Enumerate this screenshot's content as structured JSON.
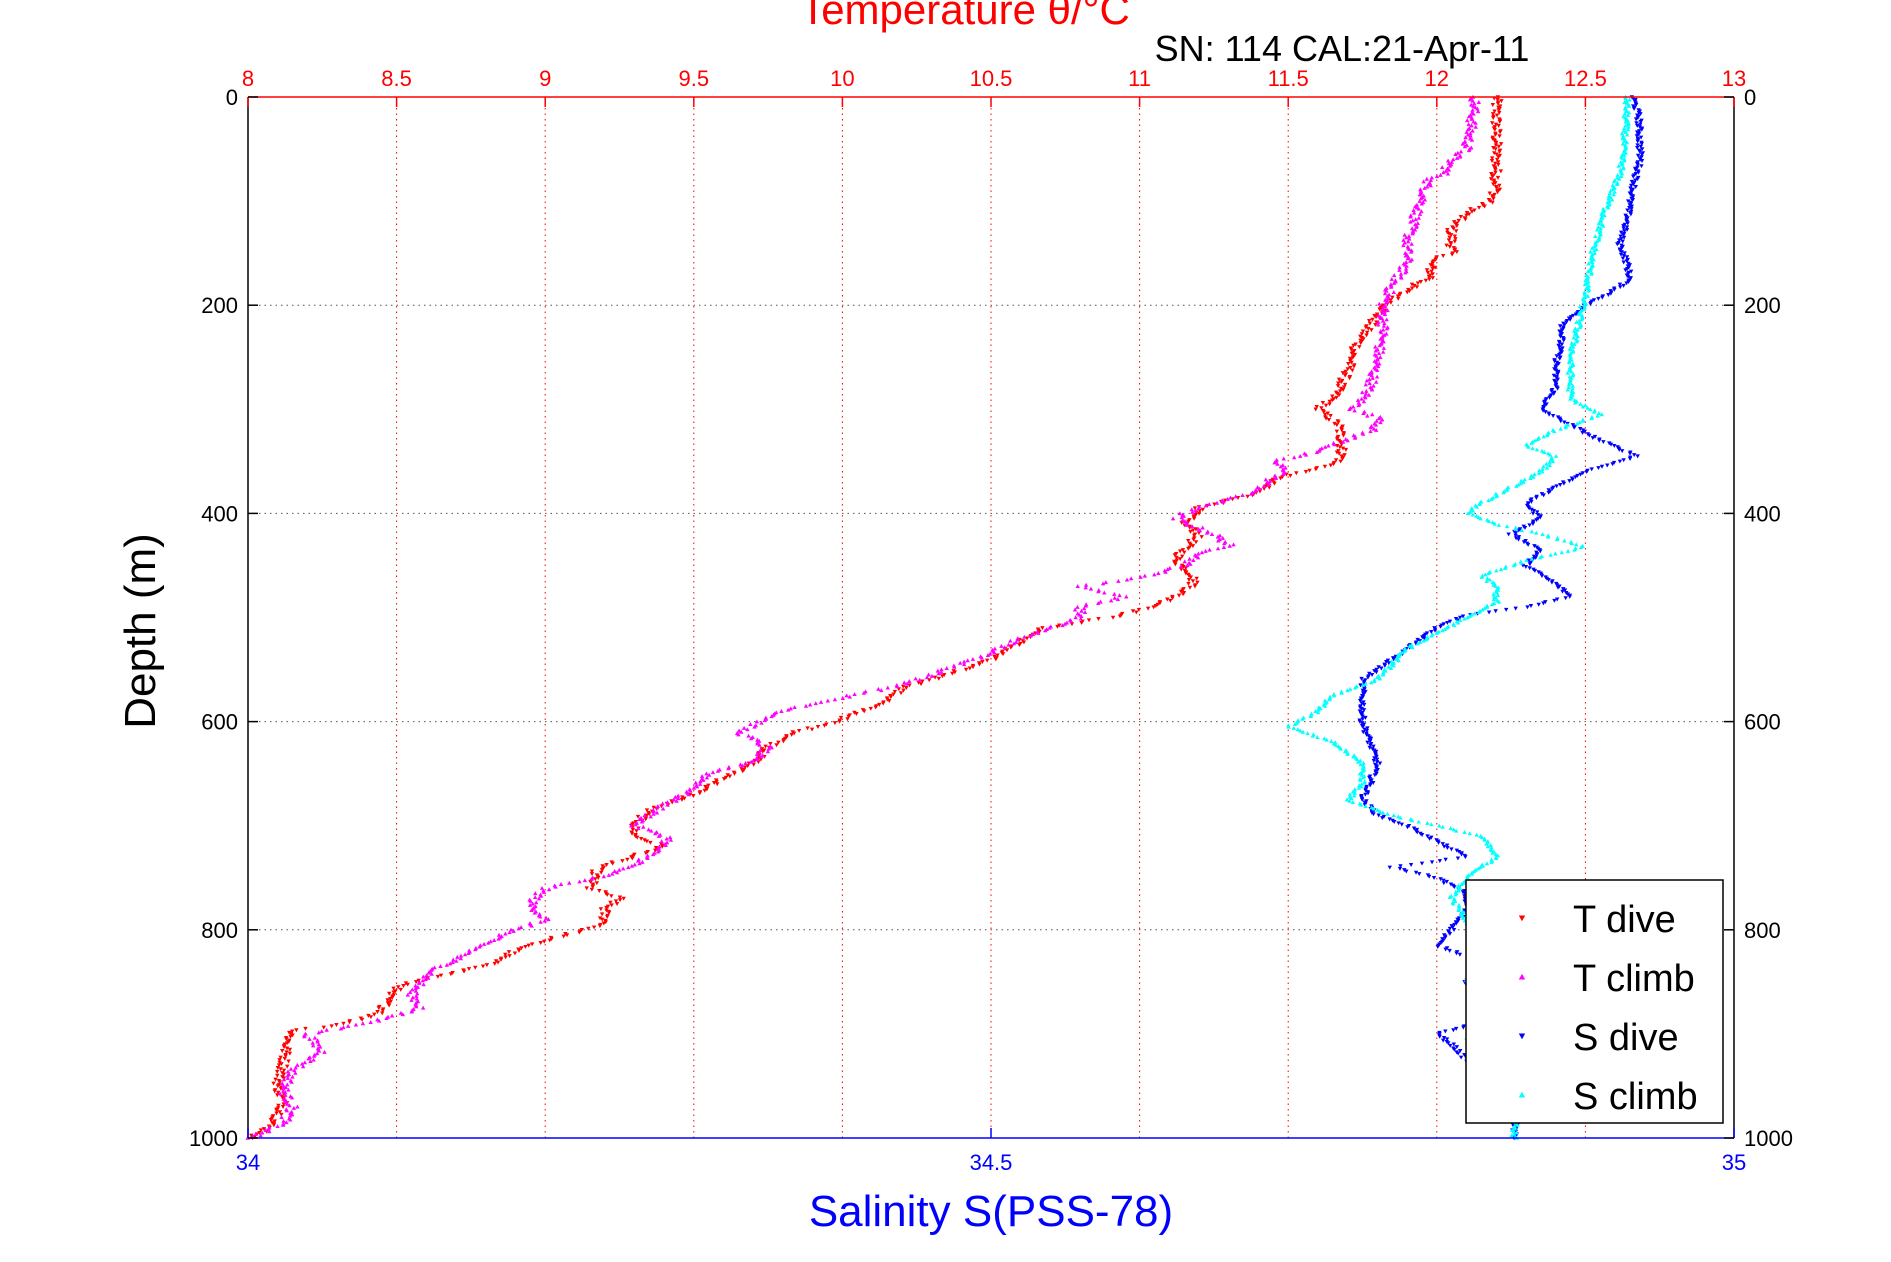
{
  "chart_data": {
    "type": "scatter",
    "title": "Temperature θ/°C",
    "subtitle": "SN: 114  CAL:21-Apr-11",
    "xlabel_top": "Temperature θ/°C",
    "xlabel_bottom": "Salinity S(PSS-78)",
    "ylabel": "Depth (m)",
    "temperature_axis": {
      "range": [
        8,
        13
      ],
      "ticks": [
        "8",
        "8.5",
        "9",
        "9.5",
        "10",
        "10.5",
        "11",
        "11.5",
        "12",
        "12.5",
        "13"
      ]
    },
    "salinity_axis": {
      "range": [
        34,
        35
      ],
      "ticks": [
        "34",
        "34.5",
        "35"
      ]
    },
    "depth_axis": {
      "range": [
        0,
        1000
      ],
      "reversed": true,
      "ticks": [
        "0",
        "200",
        "400",
        "600",
        "800",
        "1000"
      ]
    },
    "grid": "dotted",
    "legend_position": "bottom-right",
    "colors": {
      "t_dive": "#ff0000",
      "t_climb": "#ff00ff",
      "s_dive": "#0000ff",
      "s_climb": "#00ffff",
      "temp_axis": "#ff0000",
      "sal_axis": "#0000ff",
      "text": "#000000"
    },
    "series": [
      {
        "name": "T dive",
        "variable": "temperature",
        "marker": "triangle-down",
        "profile": [
          [
            0,
            12.2
          ],
          [
            30,
            12.2
          ],
          [
            90,
            12.2
          ],
          [
            100,
            12.18
          ],
          [
            112,
            12.1
          ],
          [
            125,
            12.05
          ],
          [
            150,
            12.05
          ],
          [
            158,
            11.98
          ],
          [
            175,
            11.98
          ],
          [
            180,
            11.93
          ],
          [
            195,
            11.85
          ],
          [
            210,
            11.8
          ],
          [
            225,
            11.76
          ],
          [
            245,
            11.72
          ],
          [
            265,
            11.7
          ],
          [
            290,
            11.65
          ],
          [
            300,
            11.6
          ],
          [
            315,
            11.67
          ],
          [
            330,
            11.68
          ],
          [
            348,
            11.68
          ],
          [
            355,
            11.63
          ],
          [
            365,
            11.47
          ],
          [
            375,
            11.42
          ],
          [
            382,
            11.38
          ],
          [
            395,
            11.2
          ],
          [
            410,
            11.15
          ],
          [
            420,
            11.2
          ],
          [
            435,
            11.15
          ],
          [
            445,
            11.12
          ],
          [
            460,
            11.18
          ],
          [
            470,
            11.18
          ],
          [
            480,
            11.12
          ],
          [
            490,
            11.05
          ],
          [
            500,
            10.9
          ],
          [
            510,
            10.68
          ],
          [
            540,
            10.5
          ],
          [
            560,
            10.3
          ],
          [
            568,
            10.2
          ],
          [
            580,
            10.15
          ],
          [
            600,
            9.98
          ],
          [
            610,
            9.85
          ],
          [
            625,
            9.75
          ],
          [
            640,
            9.7
          ],
          [
            655,
            9.6
          ],
          [
            670,
            9.5
          ],
          [
            685,
            9.35
          ],
          [
            700,
            9.3
          ],
          [
            710,
            9.3
          ],
          [
            720,
            9.4
          ],
          [
            740,
            9.18
          ],
          [
            760,
            9.15
          ],
          [
            770,
            9.25
          ],
          [
            780,
            9.2
          ],
          [
            795,
            9.2
          ],
          [
            810,
            9.0
          ],
          [
            820,
            8.9
          ],
          [
            835,
            8.8
          ],
          [
            850,
            8.55
          ],
          [
            860,
            8.48
          ],
          [
            880,
            8.45
          ],
          [
            892,
            8.3
          ],
          [
            897,
            8.15
          ],
          [
            910,
            8.13
          ],
          [
            930,
            8.12
          ],
          [
            950,
            8.1
          ],
          [
            968,
            8.12
          ],
          [
            980,
            8.1
          ],
          [
            995,
            8.05
          ],
          [
            1000,
            8.0
          ]
        ],
        "jitter": 0.035
      },
      {
        "name": "T climb",
        "variable": "temperature",
        "marker": "triangle-up",
        "profile": [
          [
            0,
            12.13
          ],
          [
            20,
            12.12
          ],
          [
            50,
            12.1
          ],
          [
            60,
            12.05
          ],
          [
            75,
            12.02
          ],
          [
            80,
            11.97
          ],
          [
            100,
            11.95
          ],
          [
            120,
            11.92
          ],
          [
            140,
            11.9
          ],
          [
            160,
            11.9
          ],
          [
            180,
            11.85
          ],
          [
            200,
            11.82
          ],
          [
            225,
            11.82
          ],
          [
            250,
            11.8
          ],
          [
            275,
            11.78
          ],
          [
            290,
            11.75
          ],
          [
            300,
            11.72
          ],
          [
            310,
            11.82
          ],
          [
            320,
            11.78
          ],
          [
            340,
            11.6
          ],
          [
            350,
            11.45
          ],
          [
            360,
            11.5
          ],
          [
            365,
            11.45
          ],
          [
            378,
            11.4
          ],
          [
            390,
            11.25
          ],
          [
            400,
            11.15
          ],
          [
            405,
            11.12
          ],
          [
            420,
            11.25
          ],
          [
            430,
            11.3
          ],
          [
            440,
            11.2
          ],
          [
            450,
            11.15
          ],
          [
            462,
            11.0
          ],
          [
            470,
            10.8
          ],
          [
            480,
            10.95
          ],
          [
            490,
            10.8
          ],
          [
            500,
            10.8
          ],
          [
            520,
            10.6
          ],
          [
            540,
            10.45
          ],
          [
            555,
            10.3
          ],
          [
            565,
            10.2
          ],
          [
            578,
            9.98
          ],
          [
            590,
            9.8
          ],
          [
            610,
            9.65
          ],
          [
            625,
            9.75
          ],
          [
            640,
            9.68
          ],
          [
            650,
            9.55
          ],
          [
            665,
            9.5
          ],
          [
            680,
            9.4
          ],
          [
            700,
            9.3
          ],
          [
            712,
            9.42
          ],
          [
            722,
            9.38
          ],
          [
            735,
            9.32
          ],
          [
            748,
            9.2
          ],
          [
            760,
            9.0
          ],
          [
            775,
            8.95
          ],
          [
            790,
            9.0
          ],
          [
            805,
            8.85
          ],
          [
            825,
            8.72
          ],
          [
            840,
            8.62
          ],
          [
            860,
            8.55
          ],
          [
            875,
            8.58
          ],
          [
            890,
            8.4
          ],
          [
            900,
            8.2
          ],
          [
            918,
            8.25
          ],
          [
            935,
            8.15
          ],
          [
            955,
            8.12
          ],
          [
            970,
            8.15
          ],
          [
            985,
            8.12
          ],
          [
            995,
            8.05
          ],
          [
            1000,
            8.0
          ]
        ],
        "jitter": 0.035
      },
      {
        "name": "S dive",
        "variable": "salinity",
        "marker": "triangle-down",
        "profile": [
          [
            0,
            34.932
          ],
          [
            20,
            34.936
          ],
          [
            60,
            34.937
          ],
          [
            100,
            34.93
          ],
          [
            120,
            34.928
          ],
          [
            140,
            34.923
          ],
          [
            160,
            34.928
          ],
          [
            175,
            34.93
          ],
          [
            190,
            34.915
          ],
          [
            200,
            34.9
          ],
          [
            220,
            34.885
          ],
          [
            240,
            34.883
          ],
          [
            260,
            34.88
          ],
          [
            280,
            34.88
          ],
          [
            300,
            34.87
          ],
          [
            315,
            34.89
          ],
          [
            330,
            34.91
          ],
          [
            345,
            34.935
          ],
          [
            360,
            34.9
          ],
          [
            375,
            34.88
          ],
          [
            390,
            34.86
          ],
          [
            405,
            34.87
          ],
          [
            420,
            34.85
          ],
          [
            435,
            34.87
          ],
          [
            450,
            34.86
          ],
          [
            468,
            34.88
          ],
          [
            480,
            34.89
          ],
          [
            490,
            34.86
          ],
          [
            498,
            34.82
          ],
          [
            510,
            34.8
          ],
          [
            520,
            34.79
          ],
          [
            530,
            34.78
          ],
          [
            545,
            34.765
          ],
          [
            560,
            34.75
          ],
          [
            580,
            34.75
          ],
          [
            600,
            34.75
          ],
          [
            620,
            34.755
          ],
          [
            640,
            34.76
          ],
          [
            660,
            34.755
          ],
          [
            675,
            34.75
          ],
          [
            690,
            34.76
          ],
          [
            700,
            34.78
          ],
          [
            715,
            34.8
          ],
          [
            730,
            34.82
          ],
          [
            740,
            34.77
          ],
          [
            750,
            34.8
          ],
          [
            765,
            34.82
          ],
          [
            780,
            34.82
          ],
          [
            800,
            34.81
          ],
          [
            815,
            34.8
          ],
          [
            830,
            34.83
          ],
          [
            850,
            34.82
          ],
          [
            870,
            34.83
          ],
          [
            885,
            34.84
          ],
          [
            900,
            34.8
          ],
          [
            910,
            34.81
          ],
          [
            925,
            34.82
          ],
          [
            945,
            34.83
          ],
          [
            965,
            34.84
          ],
          [
            985,
            34.853
          ],
          [
            1000,
            34.852
          ]
        ],
        "jitter": 0.004
      },
      {
        "name": "S climb",
        "variable": "salinity",
        "marker": "triangle-up",
        "profile": [
          [
            0,
            34.928
          ],
          [
            30,
            34.927
          ],
          [
            70,
            34.924
          ],
          [
            110,
            34.913
          ],
          [
            150,
            34.905
          ],
          [
            190,
            34.9
          ],
          [
            220,
            34.895
          ],
          [
            250,
            34.89
          ],
          [
            270,
            34.89
          ],
          [
            290,
            34.89
          ],
          [
            305,
            34.91
          ],
          [
            320,
            34.88
          ],
          [
            335,
            34.86
          ],
          [
            345,
            34.88
          ],
          [
            360,
            34.87
          ],
          [
            375,
            34.85
          ],
          [
            390,
            34.83
          ],
          [
            400,
            34.82
          ],
          [
            410,
            34.84
          ],
          [
            420,
            34.87
          ],
          [
            432,
            34.9
          ],
          [
            445,
            34.86
          ],
          [
            460,
            34.83
          ],
          [
            470,
            34.84
          ],
          [
            485,
            34.84
          ],
          [
            500,
            34.82
          ],
          [
            515,
            34.8
          ],
          [
            530,
            34.78
          ],
          [
            545,
            34.77
          ],
          [
            560,
            34.76
          ],
          [
            575,
            34.73
          ],
          [
            590,
            34.72
          ],
          [
            605,
            34.7
          ],
          [
            620,
            34.73
          ],
          [
            640,
            34.75
          ],
          [
            660,
            34.75
          ],
          [
            675,
            34.74
          ],
          [
            690,
            34.77
          ],
          [
            710,
            34.83
          ],
          [
            730,
            34.84
          ],
          [
            750,
            34.82
          ],
          [
            770,
            34.81
          ],
          [
            790,
            34.82
          ],
          [
            810,
            34.83
          ],
          [
            830,
            34.83
          ],
          [
            850,
            34.82
          ],
          [
            870,
            34.84
          ],
          [
            890,
            34.83
          ],
          [
            905,
            34.82
          ],
          [
            925,
            34.84
          ],
          [
            945,
            34.85
          ],
          [
            965,
            34.85
          ],
          [
            985,
            34.853
          ],
          [
            1000,
            34.852
          ]
        ],
        "jitter": 0.004
      }
    ]
  }
}
